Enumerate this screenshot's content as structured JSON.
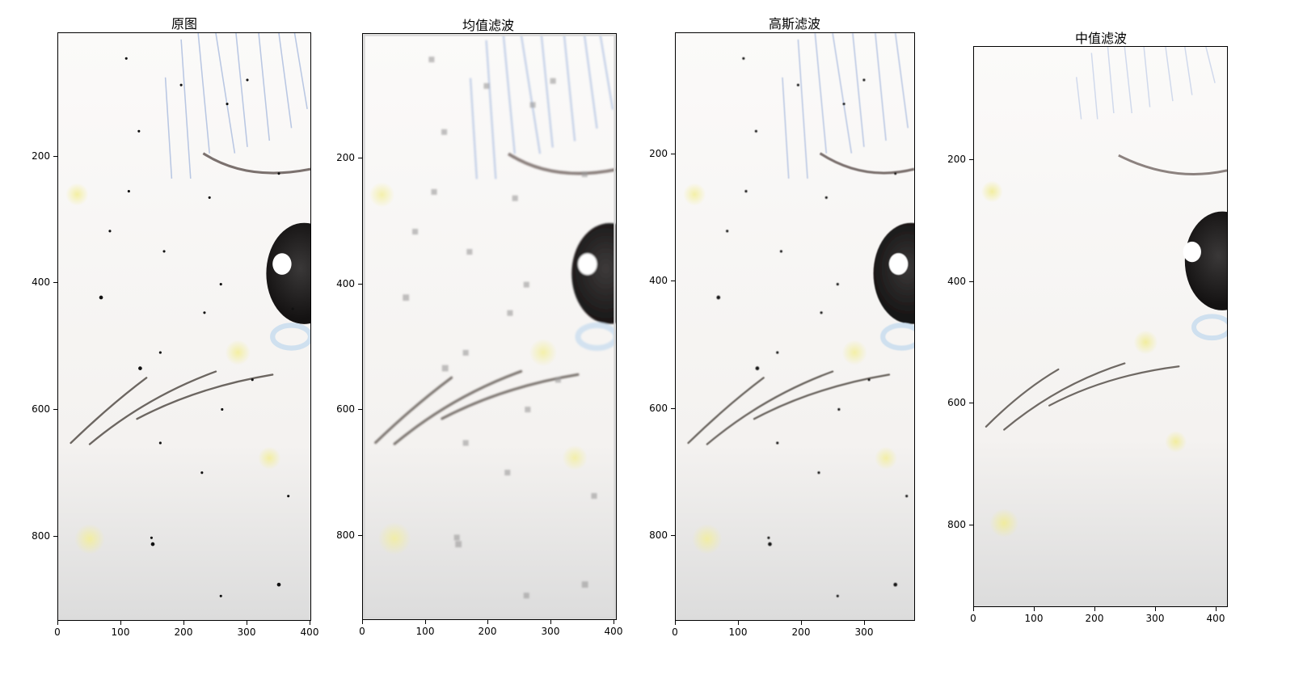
{
  "panels": [
    {
      "title": "原图",
      "x_ticks": [
        "0",
        "100",
        "200",
        "300",
        "400"
      ],
      "y_ticks": [
        "200",
        "400",
        "600",
        "800"
      ],
      "image_variant": "original-noisy"
    },
    {
      "title": "均值滤波",
      "x_ticks": [
        "0",
        "100",
        "200",
        "300",
        "400"
      ],
      "y_ticks": [
        "200",
        "400",
        "600",
        "800"
      ],
      "image_variant": "mean-filtered"
    },
    {
      "title": "高斯滤波",
      "x_ticks": [
        "0",
        "100",
        "200",
        "300"
      ],
      "y_ticks": [
        "200",
        "400",
        "600",
        "800"
      ],
      "image_variant": "gaussian-filtered"
    },
    {
      "title": "中值滤波",
      "x_ticks": [
        "0",
        "100",
        "200",
        "300",
        "400"
      ],
      "y_ticks": [
        "200",
        "400",
        "600",
        "800"
      ],
      "image_variant": "median-filtered"
    }
  ],
  "colors": {
    "background": "#f7f5f3",
    "eye": "#1e1c1c",
    "blue_lines": "#aebfe0",
    "pencil": "#6c6661",
    "glow": "#f5f0a0"
  }
}
